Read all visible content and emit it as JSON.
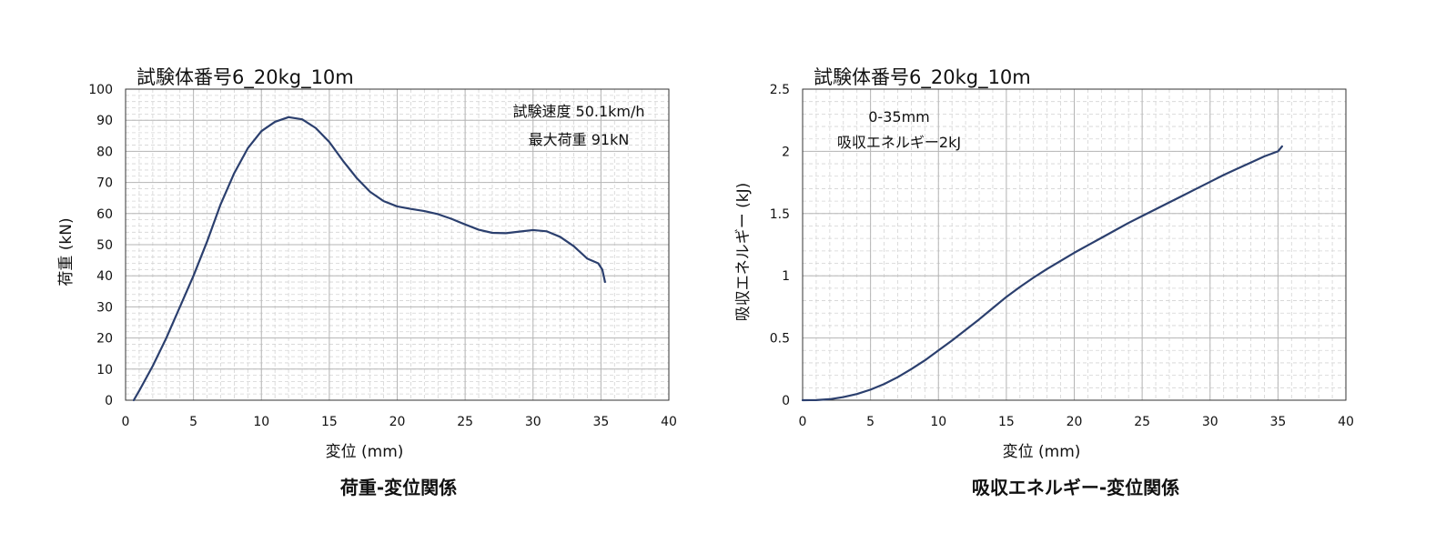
{
  "chart_data": [
    {
      "type": "line",
      "title": "試験体番号6_20kg_10m",
      "caption": "荷重-変位関係",
      "xlabel": "変位 (mm)",
      "ylabel": "荷重 (kN)",
      "xlim": [
        0,
        40
      ],
      "ylim": [
        0,
        100
      ],
      "xticks": [
        0,
        5,
        10,
        15,
        20,
        25,
        30,
        35,
        40
      ],
      "yticks": [
        0,
        10,
        20,
        30,
        40,
        50,
        60,
        70,
        80,
        90,
        100
      ],
      "grid": true,
      "annotations": [
        "試験速度 50.1km/h",
        "最大荷重 91kN"
      ],
      "series": [
        {
          "color": "#2b3f6e",
          "points": [
            [
              0.6,
              0
            ],
            [
              1.0,
              3
            ],
            [
              2.0,
              11
            ],
            [
              3.0,
              20
            ],
            [
              4.0,
              30
            ],
            [
              5.0,
              40
            ],
            [
              6.0,
              51
            ],
            [
              7.0,
              63
            ],
            [
              8.0,
              73
            ],
            [
              9.0,
              81
            ],
            [
              10.0,
              86.5
            ],
            [
              11.0,
              89.5
            ],
            [
              12.0,
              91
            ],
            [
              13.0,
              90.3
            ],
            [
              14.0,
              87.5
            ],
            [
              15.0,
              83
            ],
            [
              16.0,
              77
            ],
            [
              17.0,
              71.5
            ],
            [
              18.0,
              67
            ],
            [
              19.0,
              64
            ],
            [
              20.0,
              62.3
            ],
            [
              21.0,
              61.5
            ],
            [
              22.0,
              60.8
            ],
            [
              23.0,
              59.8
            ],
            [
              24.0,
              58.3
            ],
            [
              25.0,
              56.5
            ],
            [
              26.0,
              54.8
            ],
            [
              27.0,
              53.8
            ],
            [
              28.0,
              53.7
            ],
            [
              29.0,
              54.2
            ],
            [
              30.0,
              54.7
            ],
            [
              31.0,
              54.3
            ],
            [
              32.0,
              52.5
            ],
            [
              33.0,
              49.5
            ],
            [
              34.0,
              45.5
            ],
            [
              34.8,
              44
            ],
            [
              35.1,
              42
            ],
            [
              35.3,
              38
            ]
          ]
        }
      ]
    },
    {
      "type": "line",
      "title": "試験体番号6_20kg_10m",
      "caption": "吸収エネルギー-変位関係",
      "xlabel": "変位 (mm)",
      "ylabel": "吸収エネルギー (kJ)",
      "xlim": [
        0,
        40
      ],
      "ylim": [
        0,
        2.5
      ],
      "xticks": [
        0,
        5,
        10,
        15,
        20,
        25,
        30,
        35,
        40
      ],
      "yticks": [
        0,
        0.5,
        1,
        1.5,
        2,
        2.5
      ],
      "grid": true,
      "annotations": [
        "0-35mm",
        "吸収エネルギー2kJ"
      ],
      "series": [
        {
          "color": "#2b3f6e",
          "points": [
            [
              0,
              0
            ],
            [
              1,
              0.001
            ],
            [
              2,
              0.008
            ],
            [
              3,
              0.025
            ],
            [
              4,
              0.05
            ],
            [
              5,
              0.085
            ],
            [
              6,
              0.13
            ],
            [
              7,
              0.185
            ],
            [
              8,
              0.25
            ],
            [
              9,
              0.32
            ],
            [
              10,
              0.4
            ],
            [
              11,
              0.48
            ],
            [
              12,
              0.565
            ],
            [
              13,
              0.65
            ],
            [
              14,
              0.74
            ],
            [
              15,
              0.83
            ],
            [
              16,
              0.91
            ],
            [
              17,
              0.985
            ],
            [
              18,
              1.055
            ],
            [
              19,
              1.12
            ],
            [
              20,
              1.185
            ],
            [
              21,
              1.245
            ],
            [
              22,
              1.305
            ],
            [
              23,
              1.365
            ],
            [
              24,
              1.425
            ],
            [
              25,
              1.48
            ],
            [
              26,
              1.535
            ],
            [
              27,
              1.59
            ],
            [
              28,
              1.645
            ],
            [
              29,
              1.7
            ],
            [
              30,
              1.755
            ],
            [
              31,
              1.81
            ],
            [
              32,
              1.86
            ],
            [
              33,
              1.91
            ],
            [
              34,
              1.96
            ],
            [
              35,
              2.0
            ],
            [
              35.3,
              2.04
            ]
          ]
        }
      ]
    }
  ]
}
